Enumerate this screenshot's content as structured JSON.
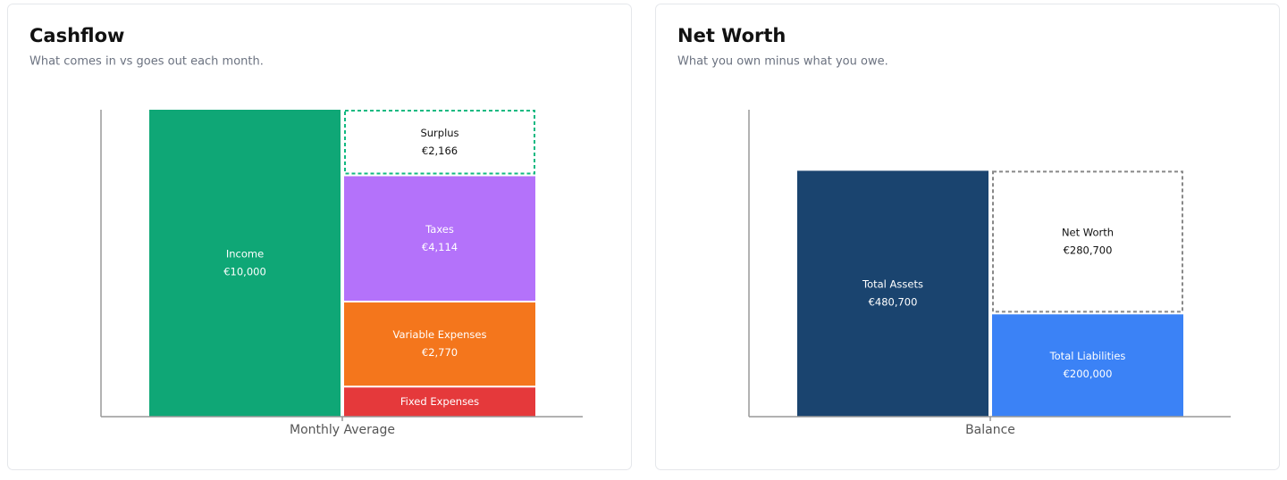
{
  "chart_data": [
    {
      "type": "stacked-bar",
      "title": "Cashflow",
      "subtitle": "What comes in vs goes out each month.",
      "categories": [
        "Monthly Average"
      ],
      "ylim": [
        0,
        10000
      ],
      "series": [
        {
          "name": "Income",
          "color": "#0fa776",
          "values": [
            10000
          ],
          "value_labels": [
            "€10,000"
          ],
          "stack": 0,
          "style": "solid"
        },
        {
          "name": "Fixed Expenses",
          "color": "#e5393b",
          "values": [
            950
          ],
          "stack": 1,
          "style": "solid"
        },
        {
          "name": "Variable Expenses",
          "color": "#f4761c",
          "values": [
            2770
          ],
          "value_labels": [
            "€2,770"
          ],
          "stack": 1,
          "style": "solid"
        },
        {
          "name": "Taxes",
          "color": "#b472fa",
          "values": [
            4114
          ],
          "value_labels": [
            "€4,114"
          ],
          "stack": 1,
          "style": "solid"
        },
        {
          "name": "Surplus",
          "color": "#10b981",
          "values": [
            2166
          ],
          "value_labels": [
            "€2,166"
          ],
          "stack": 1,
          "style": "dashed"
        }
      ]
    },
    {
      "type": "stacked-bar",
      "title": "Net Worth",
      "subtitle": "What you own minus what you owe.",
      "categories": [
        "Balance"
      ],
      "ylim": [
        0,
        600000
      ],
      "series": [
        {
          "name": "Total Assets",
          "color": "#1a446f",
          "values": [
            480700
          ],
          "value_labels": [
            "€480,700"
          ],
          "stack": 0,
          "style": "solid"
        },
        {
          "name": "Total Liabilities",
          "color": "#3b82f6",
          "values": [
            200000
          ],
          "value_labels": [
            "€200,000"
          ],
          "stack": 1,
          "style": "solid"
        },
        {
          "name": "Net Worth",
          "color": "#888888",
          "values": [
            280700
          ],
          "value_labels": [
            "€280,700"
          ],
          "stack": 1,
          "style": "dashed"
        }
      ]
    }
  ]
}
